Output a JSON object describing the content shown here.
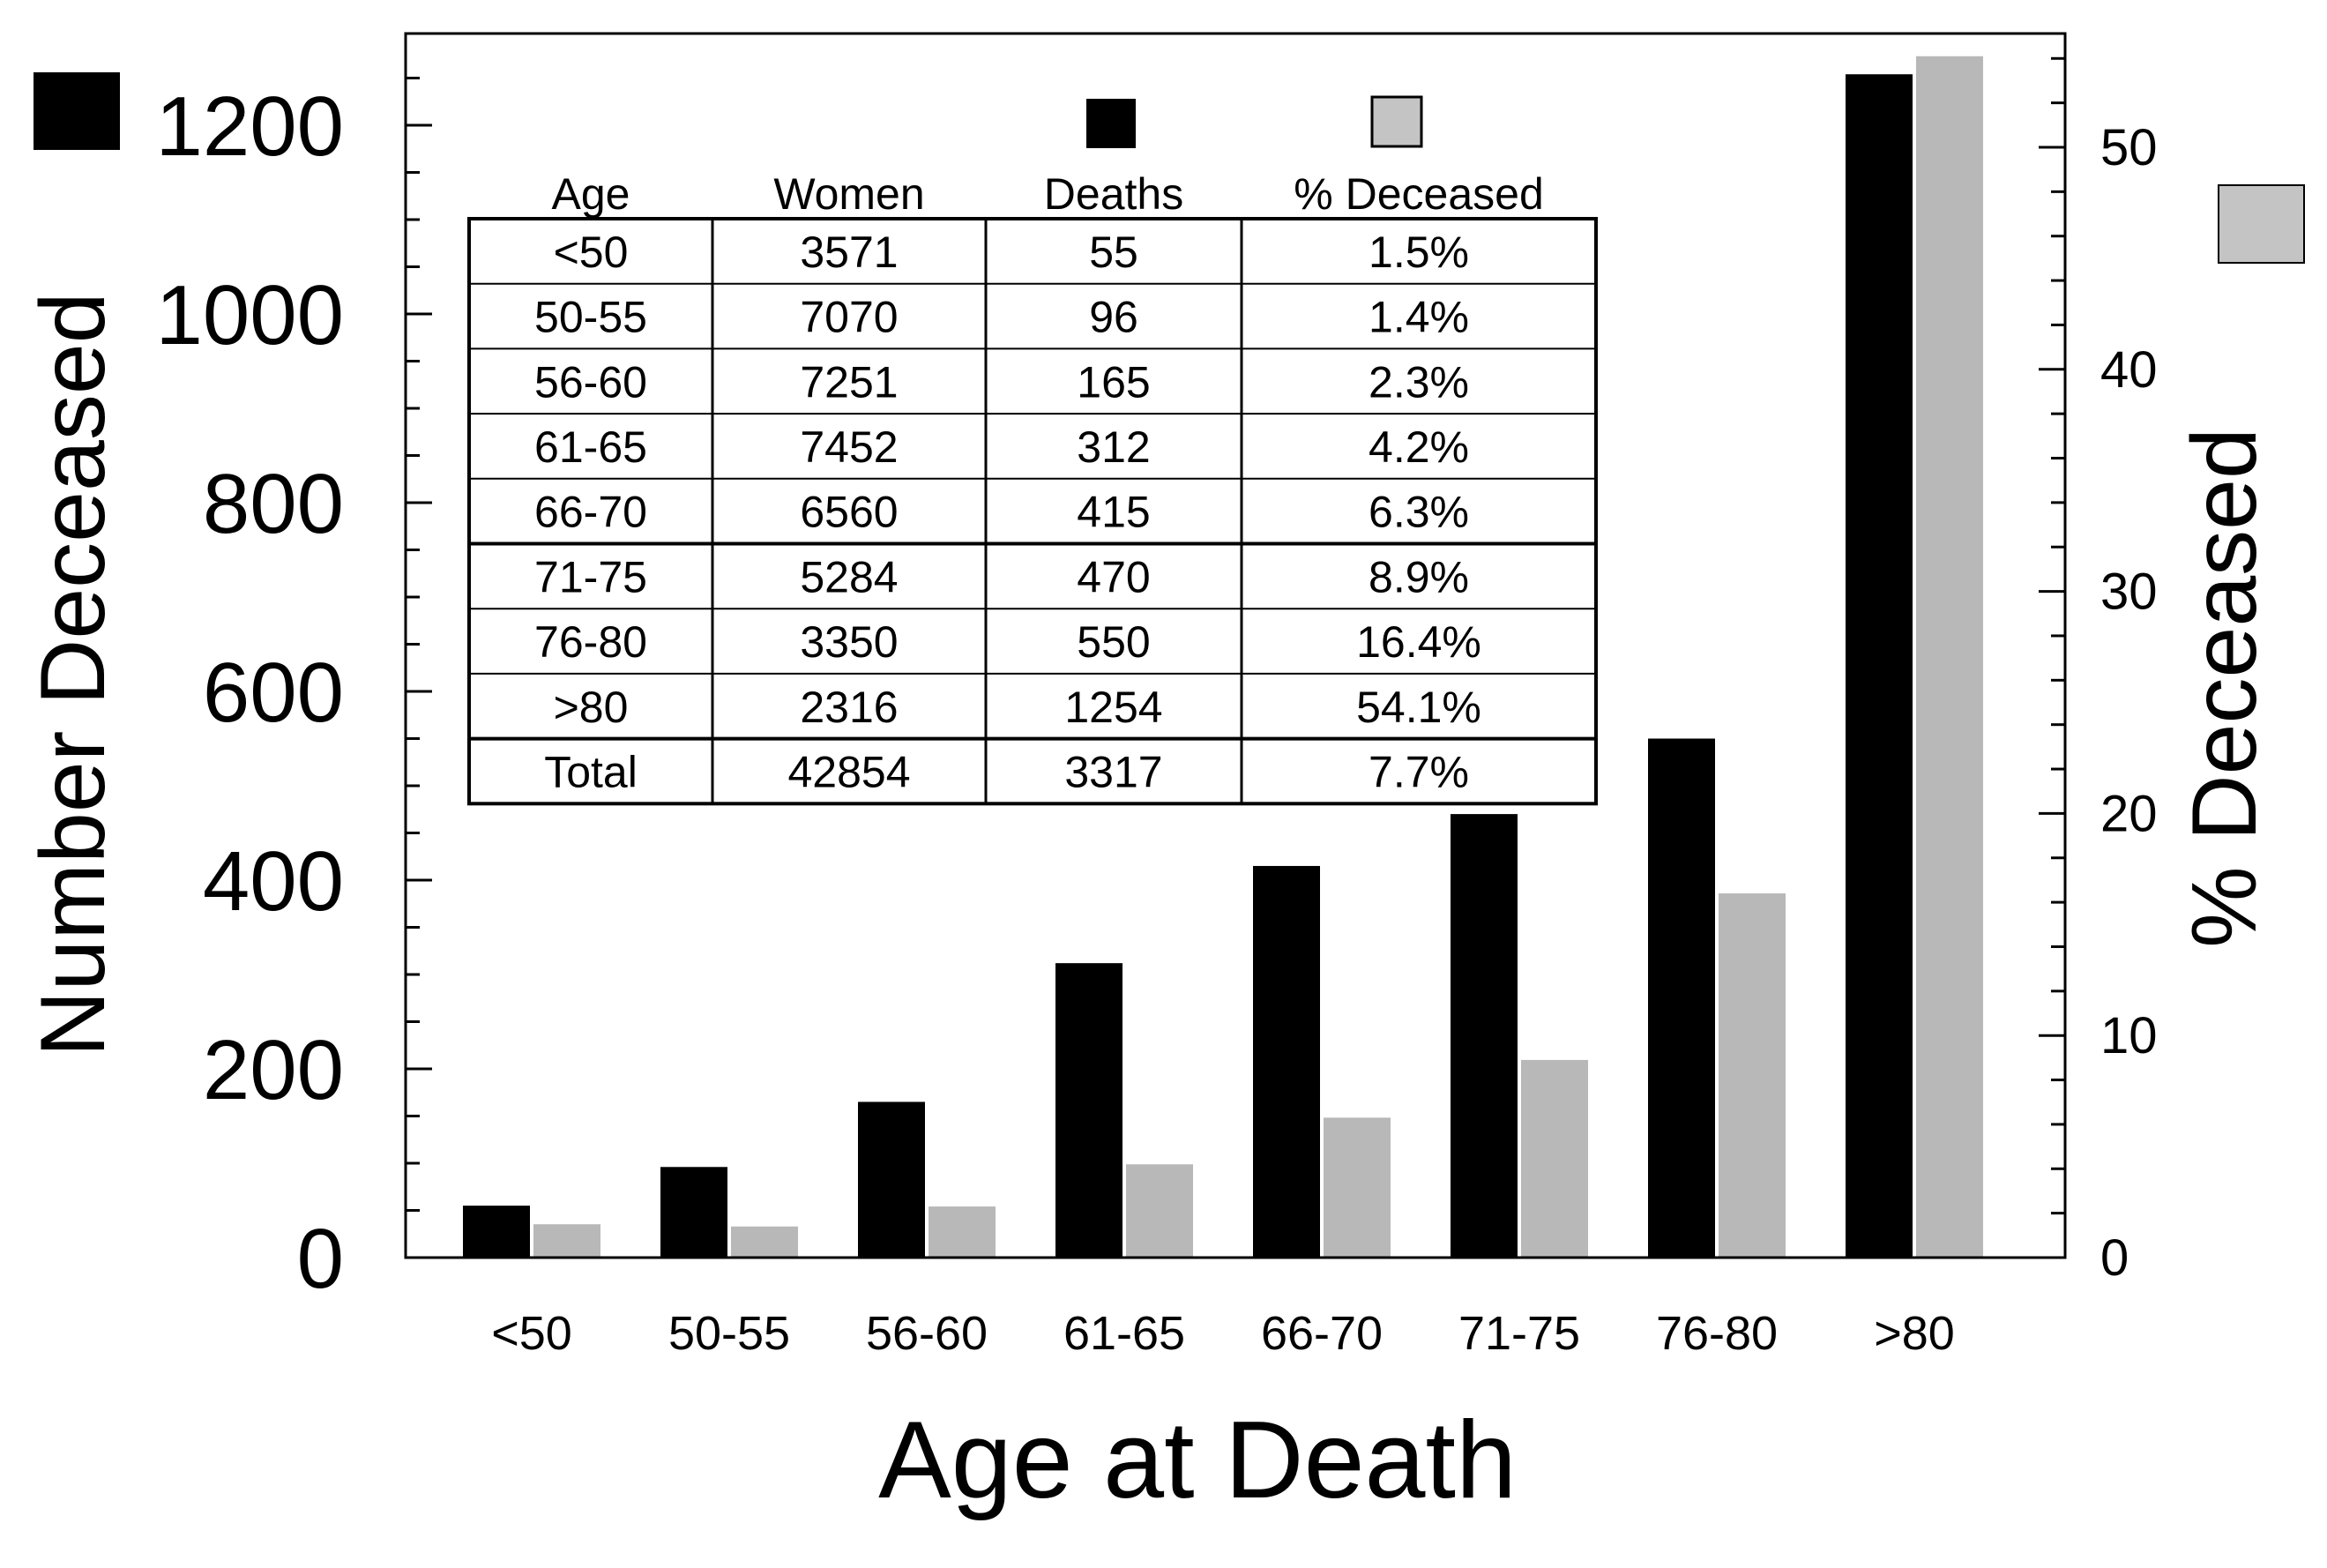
{
  "chart_data": {
    "type": "bar",
    "xlabel": "Age at Death",
    "ylabel": "Number Deceased",
    "y2label": "% Deceased",
    "categories": [
      "<50",
      "50-55",
      "56-60",
      "61-65",
      "66-70",
      "71-75",
      "76-80",
      ">80"
    ],
    "ylim": [
      0,
      1300
    ],
    "yticks": [
      0,
      200,
      400,
      600,
      800,
      1000,
      1200
    ],
    "y2lim": [
      0,
      55
    ],
    "y2ticks": [
      0,
      10,
      20,
      30,
      40,
      50
    ],
    "series": [
      {
        "name": "Deaths",
        "axis": "left",
        "color": "#000000",
        "values": [
          55,
          96,
          165,
          312,
          415,
          470,
          550,
          1254
        ]
      },
      {
        "name": "% Deceased",
        "axis": "right",
        "color": "#b8b8b8",
        "values": [
          1.5,
          1.4,
          2.3,
          4.2,
          6.3,
          8.9,
          16.4,
          54.1
        ]
      }
    ],
    "legend": {
      "placement": "top-center"
    },
    "inset_table": {
      "headers": [
        "Age",
        "Women",
        "Deaths",
        "% Deceased"
      ],
      "rows": [
        [
          "<50",
          "3571",
          "55",
          "1.5%"
        ],
        [
          "50-55",
          "7070",
          "96",
          "1.4%"
        ],
        [
          "56-60",
          "7251",
          "165",
          "2.3%"
        ],
        [
          "61-65",
          "7452",
          "312",
          "4.2%"
        ],
        [
          "66-70",
          "6560",
          "415",
          "6.3%"
        ],
        [
          "71-75",
          "5284",
          "470",
          "8.9%"
        ],
        [
          "76-80",
          "3350",
          "550",
          "16.4%"
        ],
        [
          ">80",
          "2316",
          "1254",
          "54.1%"
        ],
        [
          "Total",
          "42854",
          "3317",
          "7.7%"
        ]
      ]
    }
  }
}
